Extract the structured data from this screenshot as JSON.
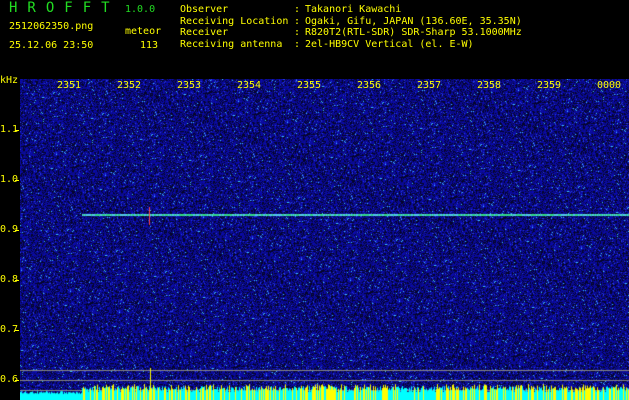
{
  "header": {
    "logo": "HROFFT",
    "version": "1.0.0",
    "filename": "2512062350.png",
    "datetime": "25.12.06 23:50",
    "meteor_label": "meteor",
    "meteor_count": "113"
  },
  "info": [
    {
      "label": "Observer",
      "value": "Takanori Kawachi"
    },
    {
      "label": "Receiving Location",
      "value": "Ogaki, Gifu, JAPAN (136.60E, 35.35N)"
    },
    {
      "label": "Receiver",
      "value": "R820T2(RTL-SDR) SDR-Sharp 53.1000MHz"
    },
    {
      "label": "Receiving antenna",
      "value": "2el-HB9CV Vertical (el. E-W)"
    }
  ],
  "axis": {
    "unit": "kHz",
    "time_ticks": [
      "2351",
      "2352",
      "2353",
      "2354",
      "2355",
      "2356",
      "2357",
      "2358",
      "2359",
      "0000"
    ],
    "freq_ticks": [
      "1.1",
      "1.0",
      "0.9",
      "0.8",
      "0.7",
      "0.6"
    ]
  },
  "colors": {
    "text": "#ffff00",
    "logo": "#22dd22",
    "background": "#0a0a6e",
    "carrier": "#33dd88",
    "level": "#00ffff"
  }
}
